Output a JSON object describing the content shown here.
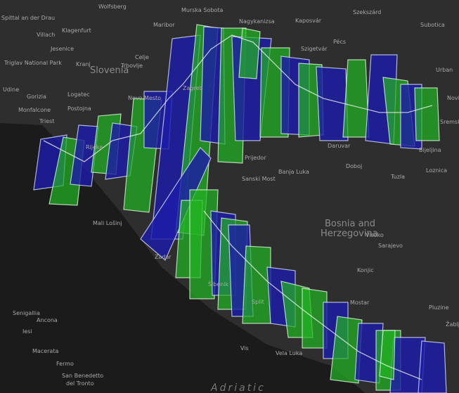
{
  "map": {
    "labels": [
      "Wolfsberg",
      "Murska Sobota",
      "Nagykanizsa",
      "Kaposvár",
      "Szekszárd",
      "Spittal an der Drau",
      "Villach",
      "Klagenfurt",
      "Maribor",
      "Subotica",
      "Jesenice",
      "Celje",
      "Triglav National Park",
      "Kranj",
      "Slovenia",
      "Trbovlje",
      "Szigetvár",
      "Pécs",
      "Urban",
      "Udine",
      "Gorizia",
      "Logatec",
      "Novo Mesto",
      "Zagreb",
      "Postojna",
      "Monfalcone",
      "Triest",
      "Rijeka",
      "Novi",
      "Sremska Mitrovica",
      "Daruvar",
      "Bijeljina",
      "Prijedor",
      "Banja Luka",
      "Doboj",
      "Tuzla",
      "Loznica",
      "Sanski Most",
      "Bosnia and",
      "Herzegovina",
      "Mali Lošinj",
      "Visoko",
      "Sarajevo",
      "Zadar",
      "Konjic",
      "Šibenik",
      "Split",
      "Mostar",
      "Senigallia",
      "Ancona",
      "Pluzine",
      "Žabljak",
      "Iesi",
      "Macerata",
      "Vis",
      "Vela Luka",
      "Fermo",
      "San Benedetto",
      "del Tronto",
      "Adriatic"
    ]
  }
}
